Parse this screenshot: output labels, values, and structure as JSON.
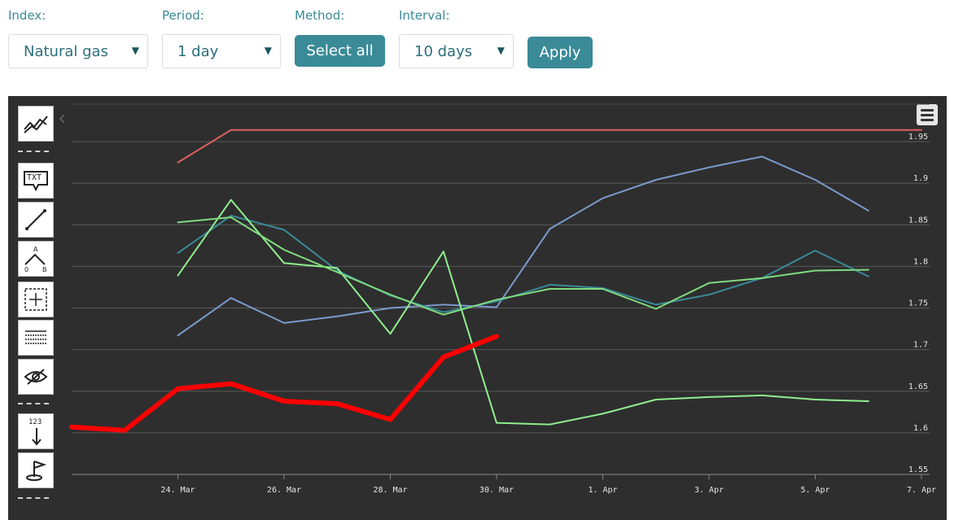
{
  "controls": {
    "index": {
      "label": "Index:",
      "value": "Natural gas"
    },
    "period": {
      "label": "Period:",
      "value": "1 day"
    },
    "method": {
      "label": "Method:",
      "button": "Select all"
    },
    "interval": {
      "label": "Interval:",
      "value": "10 days"
    },
    "apply": "Apply"
  },
  "toolbar": {
    "icons": [
      "trend-lines-icon",
      "text-annotation-icon",
      "line-draw-icon",
      "fibonacci-icon",
      "measure-icon",
      "table-icon",
      "hide-icon",
      "price-indicator-icon",
      "flag-icon"
    ],
    "txt_label": "TXT",
    "num_label": "123"
  },
  "colors": {
    "background": "#2e2e2e",
    "grid": "#5a5a5a",
    "axis_text": "#e6e6e6",
    "series": [
      "#ff0000",
      "#e06060",
      "#7b9acc",
      "#3a8a97",
      "#90ee90",
      "#7fdb7f"
    ]
  },
  "chart_data": {
    "type": "line",
    "title": "",
    "xlabel": "",
    "ylabel": "",
    "x": [
      "2024-03-22",
      "2024-03-23",
      "2024-03-24",
      "2024-03-25",
      "2024-03-26",
      "2024-03-27",
      "2024-03-28",
      "2024-03-29",
      "2024-03-30",
      "2024-03-31",
      "2024-04-01",
      "2024-04-02",
      "2024-04-03",
      "2024-04-04",
      "2024-04-05",
      "2024-04-06",
      "2024-04-07"
    ],
    "x_tick_labels": [
      "24. Mar",
      "26. Mar",
      "28. Mar",
      "30. Mar",
      "1. Apr",
      "3. Apr",
      "5. Apr",
      "7. Apr"
    ],
    "x_ticks": [
      "2024-03-24",
      "2024-03-26",
      "2024-03-28",
      "2024-03-30",
      "2024-04-01",
      "2024-04-03",
      "2024-04-05",
      "2024-04-07"
    ],
    "ylim": [
      1.55,
      1.95
    ],
    "y_ticks": [
      1.55,
      1.6,
      1.65,
      1.7,
      1.75,
      1.8,
      1.85,
      1.9,
      1.95
    ],
    "y_axis_side": "right",
    "grid": true,
    "legend": "none",
    "series": [
      {
        "values": [
          1.607,
          1.603,
          1.653,
          1.659,
          1.638,
          1.635,
          1.616,
          1.691,
          1.716,
          null,
          null,
          null,
          null,
          null,
          null,
          null,
          null
        ]
      },
      {
        "values": [
          null,
          null,
          1.925,
          1.964,
          1.964,
          1.964,
          1.964,
          1.964,
          1.964,
          1.964,
          1.964,
          1.964,
          1.964,
          1.964,
          1.964,
          1.964,
          1.964
        ]
      },
      {
        "values": [
          null,
          null,
          1.717,
          1.762,
          1.732,
          1.74,
          1.75,
          1.754,
          1.751,
          1.845,
          1.882,
          1.904,
          1.919,
          1.932,
          1.904,
          1.867,
          null
        ]
      },
      {
        "values": [
          null,
          null,
          1.816,
          1.861,
          1.844,
          1.795,
          1.765,
          1.745,
          1.758,
          1.778,
          1.774,
          1.754,
          1.766,
          1.786,
          1.819,
          1.788,
          null
        ]
      },
      {
        "values": [
          null,
          null,
          1.789,
          1.88,
          1.804,
          1.798,
          1.719,
          1.818,
          1.612,
          1.61,
          1.623,
          1.64,
          1.643,
          1.645,
          1.64,
          1.638,
          null
        ]
      },
      {
        "values": [
          null,
          null,
          1.853,
          1.859,
          1.82,
          1.793,
          1.766,
          1.742,
          1.76,
          1.773,
          1.773,
          1.749,
          1.78,
          1.786,
          1.795,
          1.796,
          null
        ]
      }
    ]
  }
}
